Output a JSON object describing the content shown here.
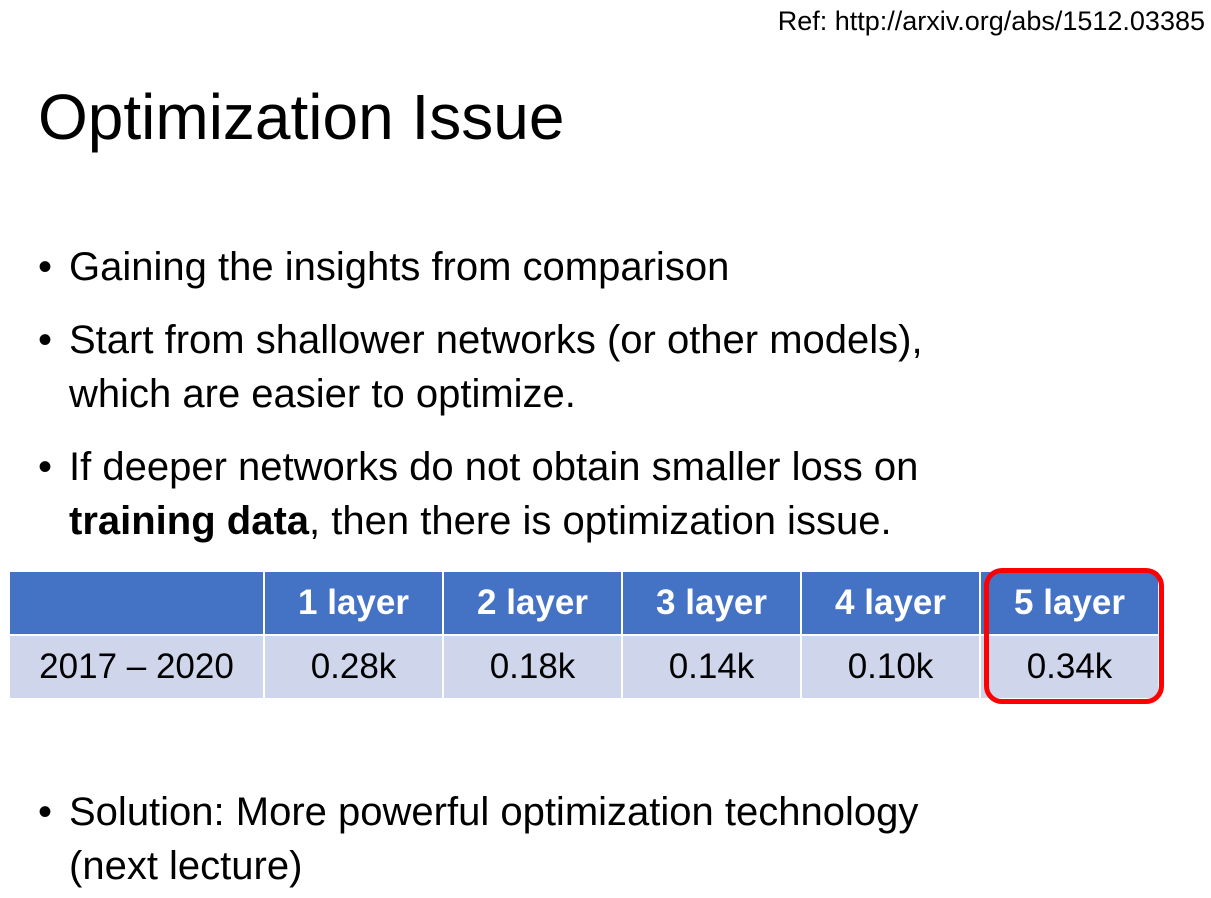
{
  "ref": "Ref: http://arxiv.org/abs/1512.03385",
  "title": "Optimization Issue",
  "bullet_symbol": "•",
  "bullets": {
    "b1": "Gaining the insights from comparison",
    "b2_line1": "Start from shallower networks (or other models),",
    "b2_line2": "which are easier to optimize.",
    "b3_line1": "If deeper networks do not obtain smaller loss on",
    "b3_bold": "training data",
    "b3_rest": ",  then there is optimization issue.",
    "b4_line1": "Solution: More powerful optimization technology",
    "b4_line2": "(next lecture)"
  },
  "table": {
    "headers": [
      "",
      "1 layer",
      "2 layer",
      "3 layer",
      "4 layer",
      "5 layer"
    ],
    "row": [
      "2017 – 2020",
      "0.28k",
      "0.18k",
      "0.14k",
      "0.10k",
      "0.34k"
    ]
  },
  "colors": {
    "header_bg": "#4472c4",
    "cell_bg": "#cfd5ea",
    "highlight": "#ff0000"
  }
}
